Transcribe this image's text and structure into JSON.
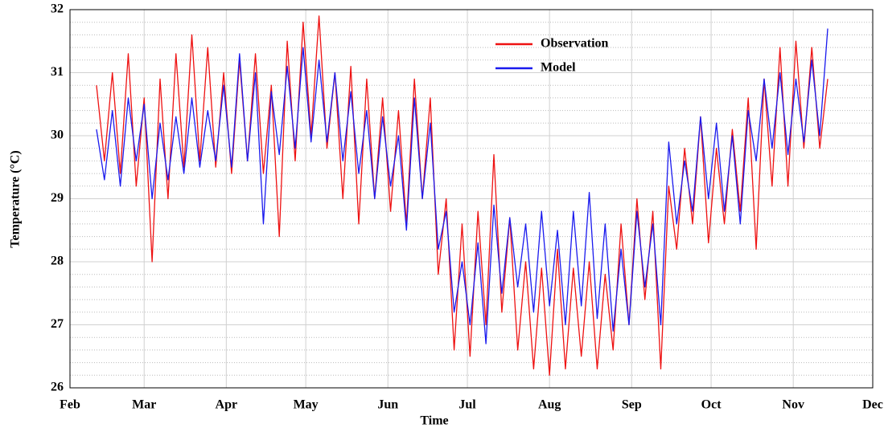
{
  "chart_data": {
    "type": "line",
    "xlabel": "Time",
    "ylabel": "Temperature (°C)",
    "x": [
      42,
      45,
      48,
      51,
      54,
      57,
      60,
      63,
      66,
      69,
      72,
      75,
      78,
      81,
      84,
      87,
      90,
      93,
      96,
      99,
      102,
      105,
      108,
      111,
      114,
      117,
      120,
      123,
      126,
      129,
      132,
      135,
      138,
      141,
      144,
      147,
      150,
      153,
      156,
      159,
      162,
      165,
      168,
      171,
      174,
      177,
      180,
      183,
      186,
      189,
      192,
      195,
      198,
      201,
      204,
      207,
      210,
      213,
      216,
      219,
      222,
      225,
      228,
      231,
      234,
      237,
      240,
      243,
      246,
      249,
      252,
      255,
      258,
      261,
      264,
      267,
      270,
      273,
      276,
      279,
      282,
      285,
      288,
      291,
      294,
      297,
      300,
      303,
      306,
      309,
      312,
      315,
      318
    ],
    "series": [
      {
        "name": "Observation",
        "color": "#ee1111",
        "values": [
          30.8,
          29.6,
          31.0,
          29.4,
          31.3,
          29.2,
          30.6,
          28.0,
          30.9,
          29.0,
          31.3,
          29.5,
          31.6,
          29.6,
          31.4,
          29.5,
          31.0,
          29.4,
          31.2,
          29.6,
          31.3,
          29.4,
          30.8,
          28.4,
          31.5,
          29.6,
          31.8,
          30.0,
          31.9,
          29.8,
          31.0,
          29.0,
          31.1,
          28.6,
          30.9,
          29.0,
          30.6,
          28.8,
          30.4,
          28.6,
          30.9,
          29.0,
          30.6,
          27.8,
          29.0,
          26.6,
          28.6,
          26.5,
          28.8,
          27.0,
          29.7,
          27.2,
          28.7,
          26.6,
          28.0,
          26.3,
          27.9,
          26.2,
          28.2,
          26.3,
          27.9,
          26.5,
          28.0,
          26.3,
          27.8,
          26.6,
          28.6,
          27.0,
          29.0,
          27.4,
          28.8,
          26.3,
          29.2,
          28.2,
          29.8,
          28.6,
          30.3,
          28.3,
          29.8,
          28.6,
          30.1,
          28.8,
          30.6,
          28.2,
          30.9,
          29.2,
          31.4,
          29.2,
          31.5,
          29.8,
          31.4,
          29.8,
          30.9
        ]
      },
      {
        "name": "Model",
        "color": "#1a1aee",
        "values": [
          30.1,
          29.3,
          30.4,
          29.2,
          30.6,
          29.6,
          30.5,
          29.0,
          30.2,
          29.3,
          30.3,
          29.4,
          30.6,
          29.5,
          30.4,
          29.6,
          30.8,
          29.5,
          31.3,
          29.6,
          31.0,
          28.6,
          30.7,
          29.7,
          31.1,
          29.8,
          31.4,
          29.9,
          31.2,
          29.9,
          31.0,
          29.6,
          30.7,
          29.4,
          30.4,
          29.0,
          30.3,
          29.2,
          30.0,
          28.5,
          30.6,
          29.0,
          30.2,
          28.2,
          28.8,
          27.2,
          28.0,
          27.0,
          28.3,
          26.7,
          28.9,
          27.5,
          28.7,
          27.6,
          28.6,
          27.2,
          28.8,
          27.3,
          28.5,
          27.0,
          28.8,
          27.3,
          29.1,
          27.1,
          28.6,
          26.9,
          28.2,
          27.0,
          28.8,
          27.6,
          28.6,
          27.0,
          29.9,
          28.6,
          29.6,
          28.8,
          30.3,
          29.0,
          30.2,
          28.8,
          30.0,
          28.6,
          30.4,
          29.6,
          30.9,
          29.8,
          31.0,
          29.7,
          30.9,
          29.9,
          31.2,
          30.0,
          31.7
        ]
      }
    ],
    "xlim": [
      32,
      335
    ],
    "xticks": [
      {
        "value": 32,
        "label": "Feb"
      },
      {
        "value": 60,
        "label": "Mar"
      },
      {
        "value": 91,
        "label": "Apr"
      },
      {
        "value": 121,
        "label": "May"
      },
      {
        "value": 152,
        "label": "Jun"
      },
      {
        "value": 182,
        "label": "Jul"
      },
      {
        "value": 213,
        "label": "Aug"
      },
      {
        "value": 244,
        "label": "Sep"
      },
      {
        "value": 274,
        "label": "Oct"
      },
      {
        "value": 305,
        "label": "Nov"
      },
      {
        "value": 335,
        "label": "Dec"
      }
    ],
    "ylim": [
      26,
      32
    ],
    "yticks": [
      26,
      27,
      28,
      29,
      30,
      31,
      32
    ],
    "grid": true,
    "legend": "upper center"
  }
}
